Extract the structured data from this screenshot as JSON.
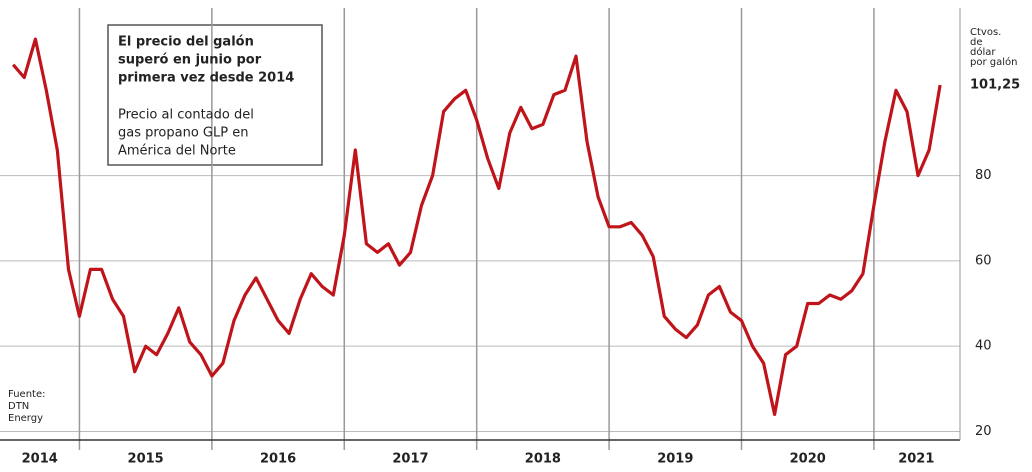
{
  "chart_data": {
    "type": "line",
    "title": [
      "El precio del galón",
      "superó en junio por",
      "primera vez desde 2014"
    ],
    "subtitle": [
      "Precio al contado del",
      "gas propano GLP en",
      "América del Norte"
    ],
    "y_axis_label": [
      "Ctvos.",
      "de",
      "dólar",
      "por galón"
    ],
    "source": [
      "Fuente:",
      "DTN",
      "Energy"
    ],
    "color": "#c0141b",
    "x": [
      2014.5,
      2014.583,
      2014.667,
      2014.75,
      2014.833,
      2014.917,
      2015,
      2015.083,
      2015.167,
      2015.25,
      2015.333,
      2015.417,
      2015.5,
      2015.583,
      2015.667,
      2015.75,
      2015.833,
      2015.917,
      2016,
      2016.083,
      2016.167,
      2016.25,
      2016.333,
      2016.417,
      2016.5,
      2016.583,
      2016.667,
      2016.75,
      2016.833,
      2016.917,
      2017,
      2017.083,
      2017.167,
      2017.25,
      2017.333,
      2017.417,
      2017.5,
      2017.583,
      2017.667,
      2017.75,
      2017.833,
      2017.917,
      2018,
      2018.083,
      2018.167,
      2018.25,
      2018.333,
      2018.417,
      2018.5,
      2018.583,
      2018.667,
      2018.75,
      2018.833,
      2018.917,
      2019,
      2019.083,
      2019.167,
      2019.25,
      2019.333,
      2019.417,
      2019.5,
      2019.583,
      2019.667,
      2019.75,
      2019.833,
      2019.917,
      2020,
      2020.083,
      2020.167,
      2020.25,
      2020.333,
      2020.417,
      2020.5,
      2020.583,
      2020.667,
      2020.75,
      2020.833,
      2020.917,
      2021,
      2021.083,
      2021.167,
      2021.25,
      2021.333,
      2021.417,
      2021.5
    ],
    "values": [
      106,
      103,
      112,
      100,
      86,
      58,
      47,
      58,
      58,
      51,
      47,
      34,
      40,
      38,
      43,
      49,
      41,
      38,
      33,
      36,
      46,
      52,
      56,
      51,
      46,
      43,
      51,
      57,
      54,
      52,
      66,
      86,
      64,
      62,
      64,
      59,
      62,
      73,
      80,
      95,
      98,
      100,
      93,
      84,
      77,
      90,
      96,
      91,
      92,
      99,
      100,
      108,
      88,
      75,
      68,
      68,
      69,
      66,
      61,
      47,
      44,
      42,
      45,
      52,
      54,
      48,
      46,
      40,
      36,
      24,
      38,
      40,
      50,
      50,
      52,
      51,
      53,
      57,
      73,
      88,
      100,
      95,
      80,
      86,
      101.25
    ],
    "end_label": {
      "value": 101.25,
      "label": "101,25"
    },
    "xlim": [
      2014.4,
      2021.65
    ],
    "xticks": [
      {
        "value": 2014.7,
        "label": "2014"
      },
      {
        "value": 2015.5,
        "label": "2015"
      },
      {
        "value": 2016.5,
        "label": "2016"
      },
      {
        "value": 2017.5,
        "label": "2017"
      },
      {
        "value": 2018.5,
        "label": "2018"
      },
      {
        "value": 2019.5,
        "label": "2019"
      },
      {
        "value": 2020.5,
        "label": "2020"
      },
      {
        "value": 2021.32,
        "label": "2021"
      }
    ],
    "ylim": [
      18,
      120
    ],
    "yticks": [
      20,
      40,
      60,
      80
    ],
    "grid": true
  }
}
